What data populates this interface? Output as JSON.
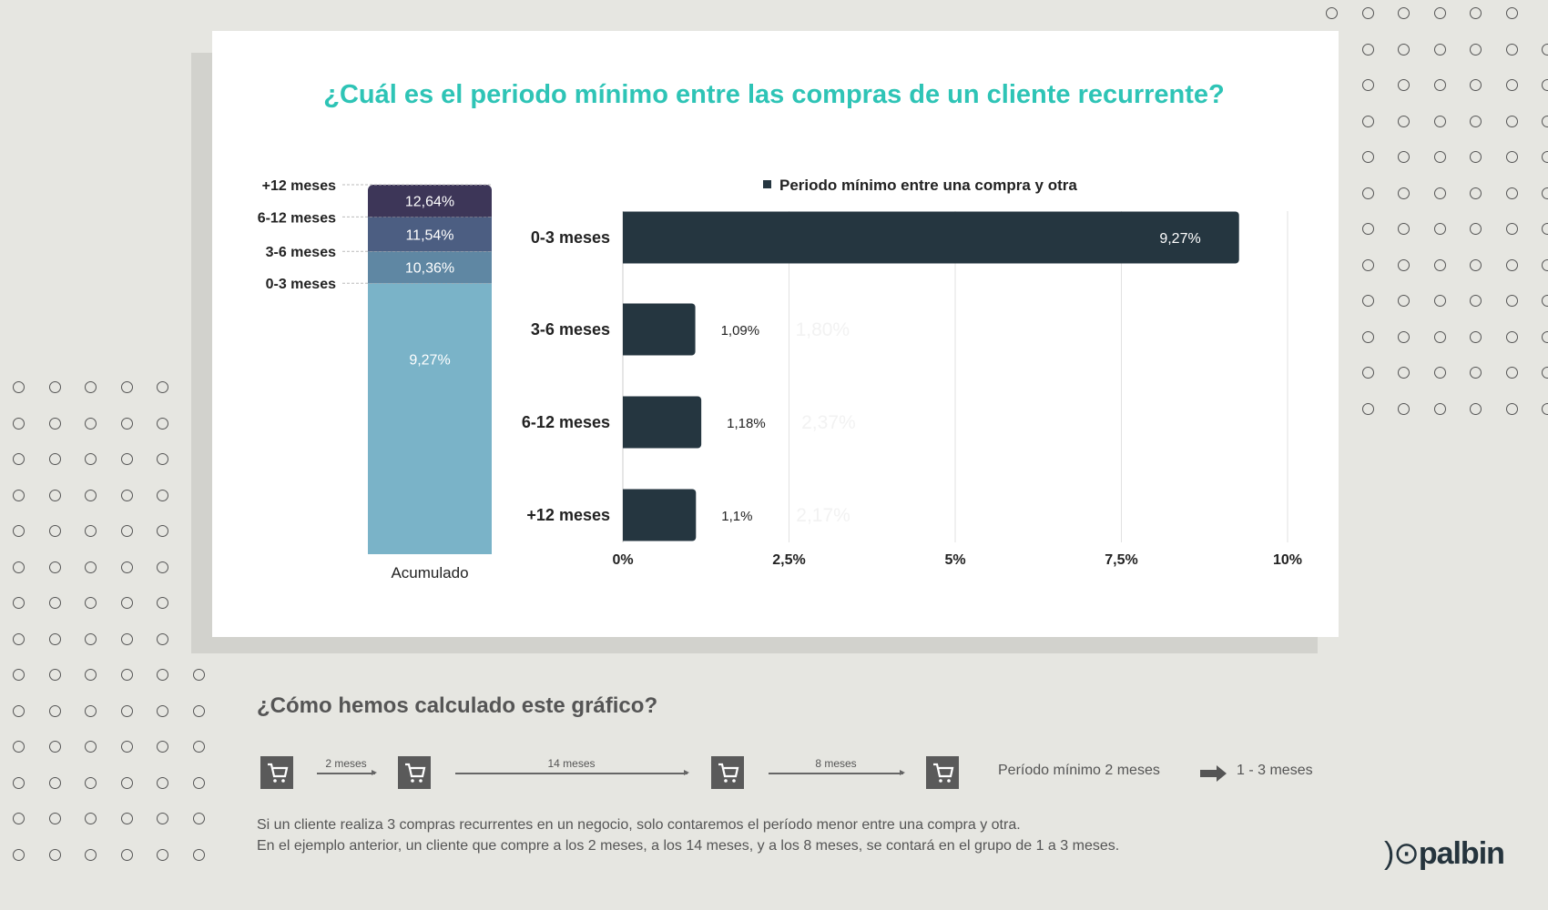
{
  "title": "¿Cuál es el periodo mínimo entre las compras de un cliente recurrente?",
  "colors": {
    "title": "#2ec4b6",
    "bar": "#253640",
    "stack": [
      "#7ab3c8",
      "#5f87a3",
      "#4c5e82",
      "#3d3658"
    ]
  },
  "chart_data": [
    {
      "type": "bar",
      "orientation": "vertical",
      "stacked": true,
      "categories": [
        "Acumulado"
      ],
      "series": [
        {
          "name": "0-3 meses",
          "values": [
            9.27
          ],
          "label": "9,27%"
        },
        {
          "name": "3-6 meses",
          "values": [
            1.09
          ],
          "label": "10,36%"
        },
        {
          "name": "6-12 meses",
          "values": [
            1.18
          ],
          "label": "11,54%"
        },
        {
          "name": "+12 meses",
          "values": [
            1.1
          ],
          "label": "12,64%"
        }
      ]
    },
    {
      "type": "bar",
      "orientation": "horizontal",
      "legend": "Periodo mínimo entre una compra y otra",
      "legend_position": "top",
      "categories": [
        "0-3 meses",
        "3-6 meses",
        "6-12 meses",
        "+12 meses"
      ],
      "values": [
        9.27,
        1.09,
        1.18,
        1.1
      ],
      "labels": [
        "9,27%",
        "1,09%",
        "1,18%",
        "1,1%"
      ],
      "ghost_labels": [
        "",
        "1,80%",
        "2,37%",
        "2,17%"
      ],
      "xlim": [
        0,
        10
      ],
      "xticks": [
        0,
        2.5,
        5,
        7.5,
        10
      ],
      "xtick_labels": [
        "0%",
        "2,5%",
        "5%",
        "7,5%",
        "10%"
      ],
      "grid": true
    }
  ],
  "explanation": {
    "heading": "¿Cómo hemos calculado este gráfico?",
    "intervals": [
      "2 meses",
      "14 meses",
      "8 meses"
    ],
    "result_text": "Período  mínimo 2 meses",
    "result_group": "1 - 3 meses",
    "lines": [
      "Si un cliente realiza 3 compras recurrentes en un negocio, solo contaremos el período menor entre una compra y otra.",
      "En el ejemplo anterior, un cliente que compre a los 2 meses, a los 14 meses, y a los 8 meses, se contará en el grupo de 1 a 3 meses."
    ]
  },
  "logo": "palbin"
}
